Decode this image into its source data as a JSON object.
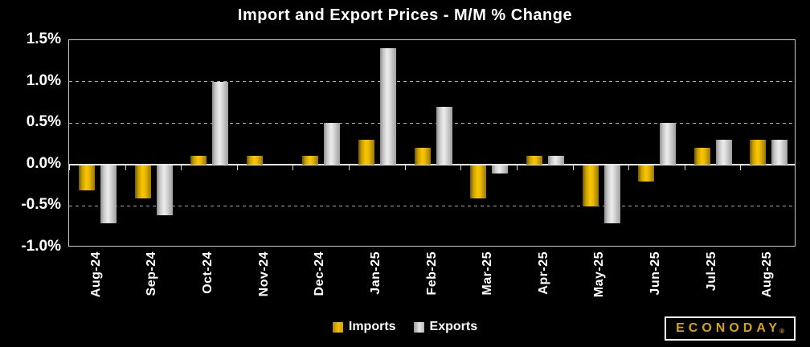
{
  "title": "Import and Export Prices - M/M % Change",
  "legend": {
    "imports_label": "Imports",
    "exports_label": "Exports"
  },
  "logo": {
    "text": "ECONODAY",
    "registered_mark": "®"
  },
  "colors": {
    "background": "#000000",
    "text": "#FFFFFF",
    "imports_bar": "#E8B400",
    "exports_bar": "#C8C8C8",
    "logo_gold": "#D2A41C",
    "gridline": "#BBBBBB"
  },
  "axis": {
    "y_ticks": [
      {
        "label": "1.5%",
        "value": 1.5
      },
      {
        "label": "1.0%",
        "value": 1.0
      },
      {
        "label": "0.5%",
        "value": 0.5
      },
      {
        "label": "0.0%",
        "value": 0.0
      },
      {
        "label": "-0.5%",
        "value": -0.5
      },
      {
        "label": "-1.0%",
        "value": -1.0
      }
    ],
    "dashed_gridline_values": [
      1.0,
      0.5,
      -0.5
    ]
  },
  "chart_data": {
    "type": "bar",
    "title": "Import and Export Prices - M/M % Change",
    "categories": [
      "Aug-24",
      "Sep-24",
      "Oct-24",
      "Nov-24",
      "Dec-24",
      "Jan-25",
      "Feb-25",
      "Mar-25",
      "Apr-25",
      "May-25",
      "Jun-25",
      "Jul-25",
      "Aug-25"
    ],
    "series": [
      {
        "name": "Imports",
        "color": "#E8B400",
        "values": [
          -0.3,
          -0.4,
          0.1,
          0.1,
          0.1,
          0.3,
          0.2,
          -0.4,
          0.1,
          -0.5,
          -0.2,
          0.2,
          0.3
        ]
      },
      {
        "name": "Exports",
        "color": "#C8C8C8",
        "values": [
          -0.7,
          -0.6,
          1.0,
          0.0,
          0.5,
          1.4,
          0.7,
          -0.1,
          0.1,
          -0.7,
          0.5,
          0.3,
          0.3
        ]
      }
    ],
    "xlabel": "",
    "ylabel": "M/M % Change",
    "ylim": [
      -1.0,
      1.5
    ],
    "ytick_step": 0.5,
    "grid": "horizontal-dashed",
    "legend_position": "bottom-center"
  }
}
